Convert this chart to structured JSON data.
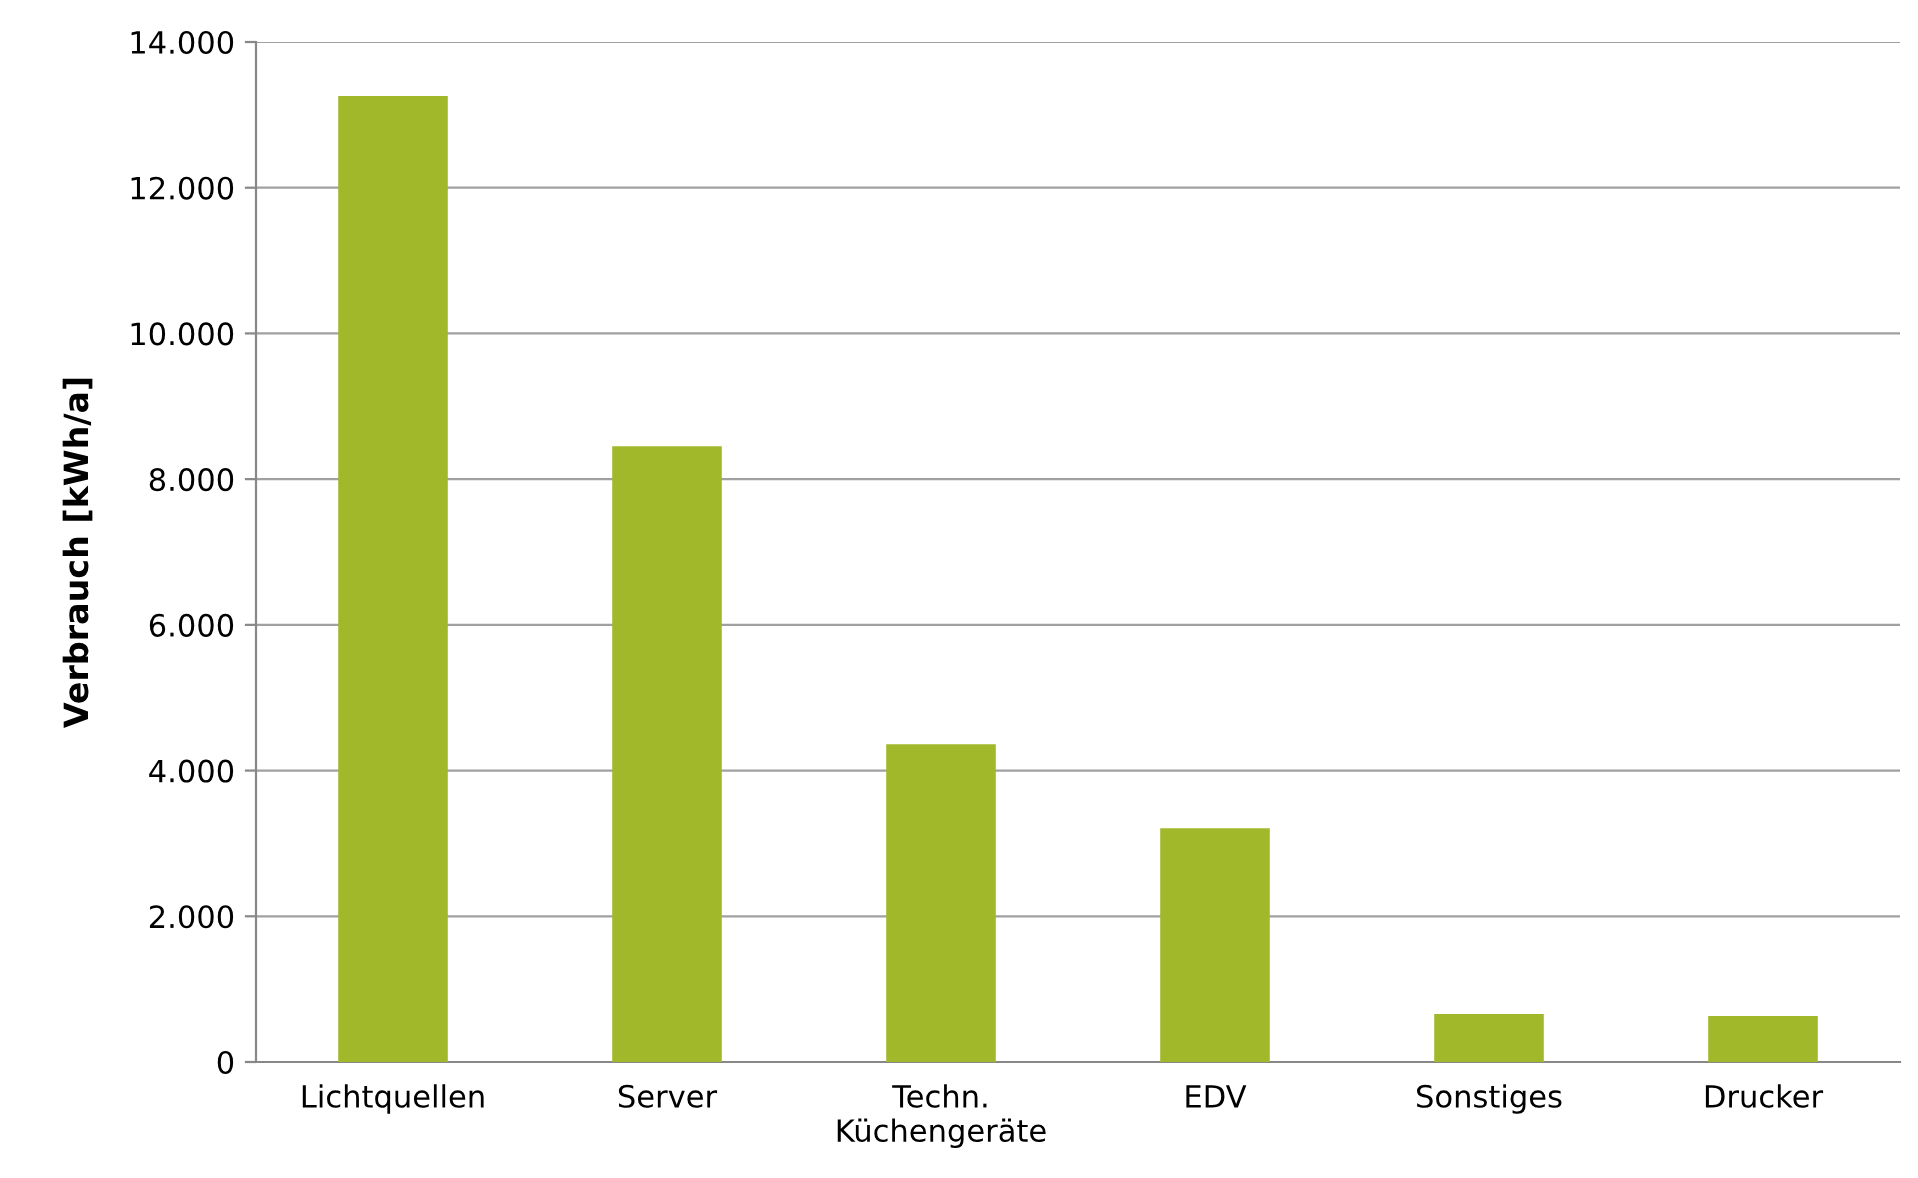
{
  "chart_data": {
    "type": "bar",
    "ylabel": "Verbrauch [kWh/a]",
    "categories": [
      "Lichtquellen",
      "Server",
      "Techn.\nKüchengeräte",
      "EDV",
      "Sonstiges",
      "Drucker"
    ],
    "values": [
      13260,
      8450,
      4360,
      3210,
      660,
      630
    ],
    "color": "#a2b82b",
    "ylim": [
      0,
      14000
    ],
    "yticks": [
      0,
      {
        "value": 2000,
        "label": "2.000"
      },
      {
        "value": 4000,
        "label": "4.000"
      },
      {
        "value": 6000,
        "label": "6.000"
      },
      {
        "value": 8000,
        "label": "8.000"
      },
      {
        "value": 10000,
        "label": "10.000"
      },
      {
        "value": 12000,
        "label": "12.000"
      },
      {
        "value": 14000,
        "label": "14.000"
      }
    ],
    "grid": "y"
  }
}
